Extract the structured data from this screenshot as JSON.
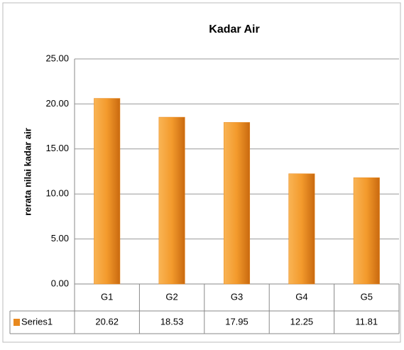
{
  "chart_data": {
    "type": "bar",
    "title": "Kadar Air",
    "y_label": "rerata nilai kadar air",
    "categories": [
      "G1",
      "G2",
      "G3",
      "G4",
      "G5"
    ],
    "series": [
      {
        "name": "Series1",
        "color": "#e8891f",
        "values": [
          20.62,
          18.53,
          17.95,
          12.25,
          11.81
        ]
      }
    ],
    "ylim": [
      0,
      25
    ],
    "yticks": [
      {
        "value": 0,
        "label": "0.00"
      },
      {
        "value": 5,
        "label": "5.00"
      },
      {
        "value": 10,
        "label": "10.00"
      },
      {
        "value": 15,
        "label": "15.00"
      },
      {
        "value": 20,
        "label": "20.00"
      },
      {
        "value": 25,
        "label": "25.00"
      }
    ],
    "grid": true,
    "data_table": true
  }
}
